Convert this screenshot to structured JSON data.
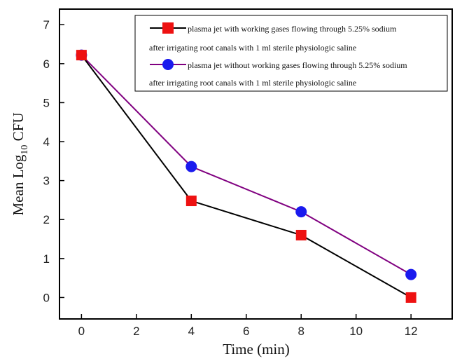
{
  "chart_data": {
    "type": "line",
    "x": [
      0,
      4,
      8,
      12
    ],
    "xlabel": "Time (min)",
    "ylabel": "Mean Log10 CFU",
    "ylabel_main": "Mean Log",
    "ylabel_sub": "10",
    "ylabel_tail": " CFU",
    "xlim": [
      -0.8,
      13.5
    ],
    "ylim": [
      -0.55,
      7.4
    ],
    "xticks": [
      0,
      2,
      4,
      6,
      8,
      10,
      12
    ],
    "yticks": [
      0,
      1,
      2,
      3,
      4,
      5,
      6,
      7
    ],
    "legend_position": "top-right",
    "grid": false,
    "series": [
      {
        "name": "plasma jet with working gases flowing through  5.25% sodium after irrigating root canals with 1 ml sterile physiologic saline",
        "legend_line1": "plasma jet with working gases flowing through  5.25% sodium",
        "legend_line2": "after irrigating root canals with 1 ml sterile physiologic saline",
        "marker": "square",
        "line_color": "#000000",
        "marker_color": "#ee1111",
        "values": [
          6.22,
          2.48,
          1.6,
          0.0
        ]
      },
      {
        "name": "plasma jet without working gases flowing through 5.25% sodium after irrigating root canals with 1 ml sterile physiologic saline",
        "legend_line1": "plasma jet without working gases flowing through 5.25% sodium",
        "legend_line2": "after irrigating root canals with 1 ml sterile physiologic saline",
        "marker": "circle",
        "line_color": "#800080",
        "marker_color": "#1a1aee",
        "values": [
          6.22,
          3.36,
          2.2,
          0.59
        ]
      }
    ]
  }
}
